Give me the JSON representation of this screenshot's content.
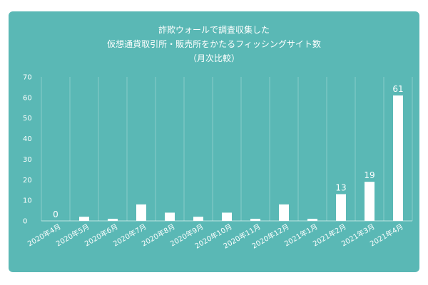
{
  "chart_data": {
    "type": "bar",
    "title_lines": [
      "詐欺ウォールで調査収集した",
      "仮想通貨取引所・販売所をかたるフィッシングサイト数",
      "（月次比較）"
    ],
    "categories": [
      "2020年4月",
      "2020年5月",
      "2020年6月",
      "2020年7月",
      "2020年8月",
      "2020年9月",
      "2020年10月",
      "2020年11月",
      "2020年12月",
      "2021年1月",
      "2021年2月",
      "2021年3月",
      "2021年4月"
    ],
    "values": [
      0,
      2,
      1,
      8,
      4,
      2,
      4,
      1,
      8,
      1,
      13,
      19,
      61
    ],
    "data_labels": [
      {
        "index": 0,
        "text": "0"
      },
      {
        "index": 10,
        "text": "13"
      },
      {
        "index": 11,
        "text": "19"
      },
      {
        "index": 12,
        "text": "61"
      }
    ],
    "y_ticks": [
      0,
      10,
      20,
      30,
      40,
      50,
      60,
      70
    ],
    "ylim": [
      0,
      70
    ],
    "grid": "vertical",
    "colors": {
      "background": "#5ab8b5",
      "bar": "#ffffff",
      "text": "#ffffff"
    }
  }
}
